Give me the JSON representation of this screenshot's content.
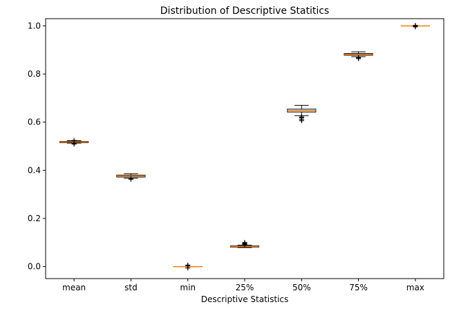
{
  "chart_data": {
    "type": "box",
    "title": "Distribution of Descriptive Statitics",
    "xlabel": "Descriptive Statistics",
    "ylabel": "",
    "ylim": [
      -0.05,
      1.03
    ],
    "yticks": [
      "0.0",
      "0.2",
      "0.4",
      "0.6",
      "0.8",
      "1.0"
    ],
    "grid": false,
    "colors": {
      "box": "#000000",
      "median": "#ff7f0e",
      "flier": "#000000"
    },
    "categories": [
      "mean",
      "std",
      "min",
      "25%",
      "50%",
      "75%",
      "max"
    ],
    "boxes": [
      {
        "q1": 0.515,
        "median": 0.5175,
        "q3": 0.52,
        "whisker_low": 0.513,
        "whisker_high": 0.523,
        "outliers": [
          0.509,
          0.512,
          0.524
        ]
      },
      {
        "q1": 0.372,
        "median": 0.3765,
        "q3": 0.38,
        "whisker_low": 0.367,
        "whisker_high": 0.386,
        "outliers": [
          0.363,
          0.365
        ]
      },
      {
        "q1": 0.0,
        "median": 0.0,
        "q3": 0.0,
        "whisker_low": 0.0,
        "whisker_high": 0.0,
        "outliers": [
          -0.006,
          0.003,
          0.006
        ]
      },
      {
        "q1": 0.081,
        "median": 0.0835,
        "q3": 0.086,
        "whisker_low": 0.079,
        "whisker_high": 0.089,
        "outliers": [
          0.091,
          0.094,
          0.097,
          0.1
        ]
      },
      {
        "q1": 0.642,
        "median": 0.648,
        "q3": 0.654,
        "whisker_low": 0.627,
        "whisker_high": 0.67,
        "outliers": [
          0.606,
          0.612,
          0.618,
          0.622
        ]
      },
      {
        "q1": 0.878,
        "median": 0.881,
        "q3": 0.885,
        "whisker_low": 0.872,
        "whisker_high": 0.892,
        "outliers": [
          0.864,
          0.868
        ]
      },
      {
        "q1": 1.0,
        "median": 1.0,
        "q3": 1.0,
        "whisker_low": 1.0,
        "whisker_high": 1.0,
        "outliers": [
          0.996,
          0.999,
          1.002
        ]
      }
    ]
  }
}
